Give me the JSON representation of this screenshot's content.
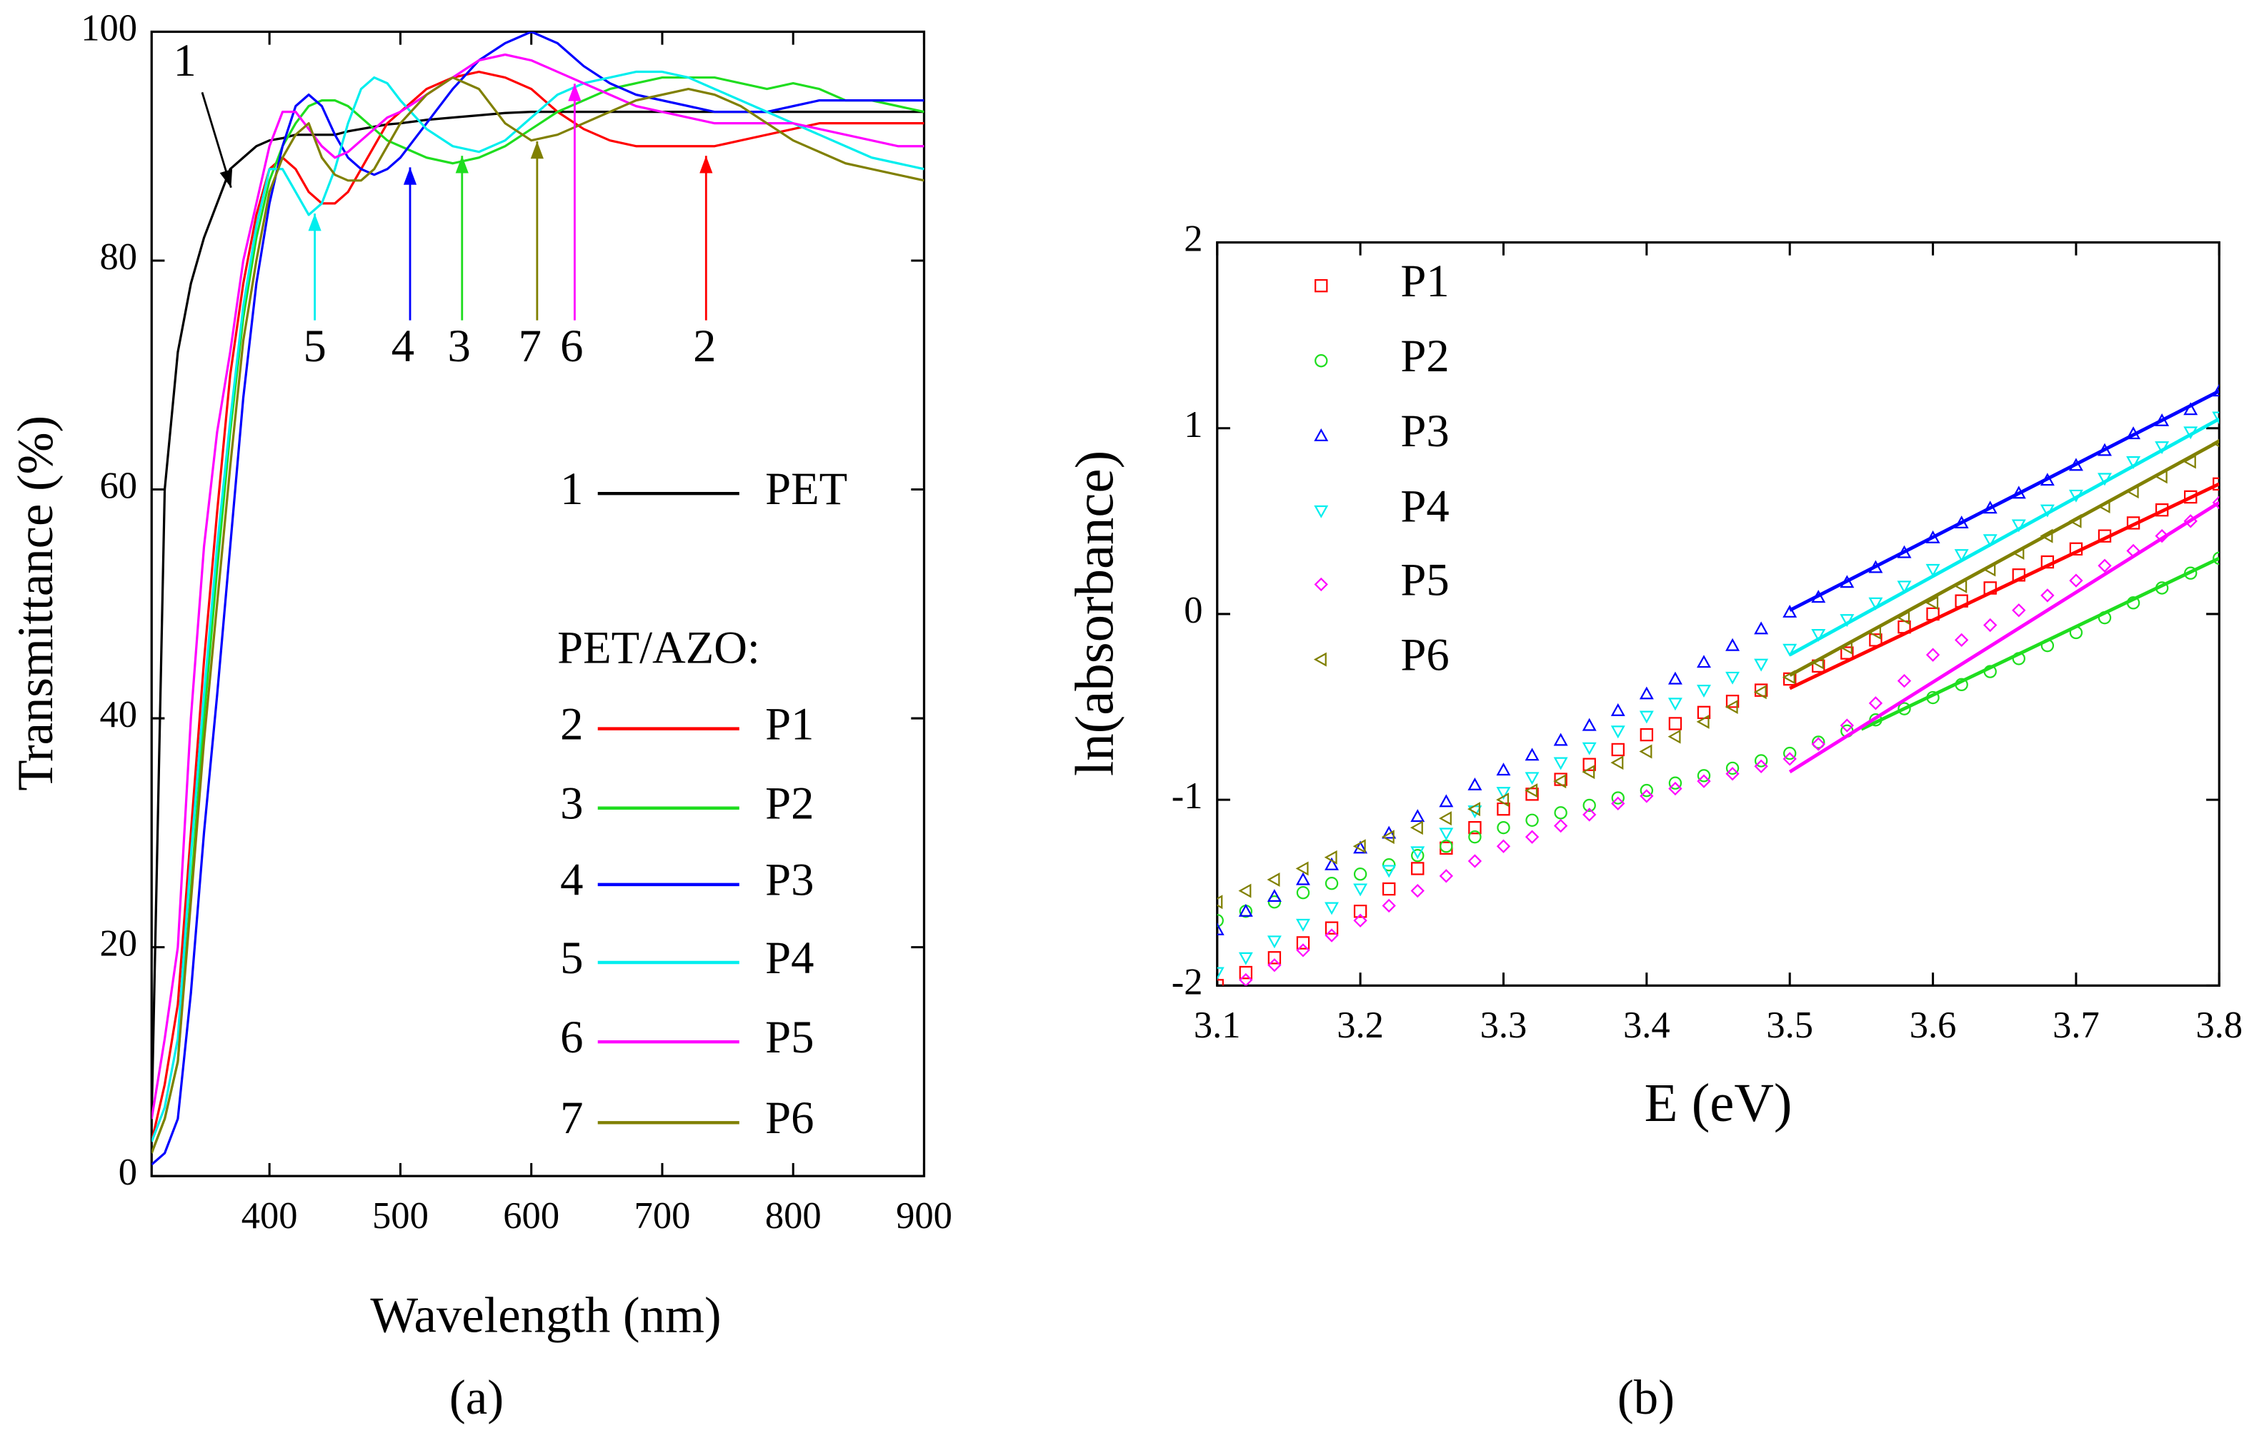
{
  "chart_data": [
    {
      "type": "line",
      "xlabel": "Wavelength (nm)",
      "ylabel": "Transmittance (%)",
      "caption": "(a)",
      "xlim": [
        310,
        900
      ],
      "ylim": [
        0,
        100
      ],
      "xticks": [
        400,
        500,
        600,
        700,
        800,
        900
      ],
      "yticks": [
        0,
        20,
        40,
        60,
        80,
        100
      ],
      "legend_title": "PET/AZO:",
      "x": [
        310,
        320,
        330,
        340,
        350,
        360,
        370,
        380,
        390,
        400,
        410,
        420,
        430,
        440,
        450,
        460,
        470,
        480,
        490,
        500,
        520,
        540,
        560,
        580,
        600,
        620,
        640,
        660,
        680,
        700,
        720,
        740,
        760,
        780,
        800,
        820,
        840,
        860,
        880,
        900
      ],
      "series": [
        {
          "name": "PET",
          "label": "1",
          "color": "#000000",
          "values": [
            5,
            60,
            72,
            78,
            82,
            85,
            88,
            89,
            90,
            90.5,
            90.7,
            91,
            91,
            91,
            91,
            91.3,
            91.5,
            91.7,
            91.9,
            92,
            92.3,
            92.5,
            92.7,
            92.9,
            93,
            93,
            93,
            93,
            93,
            93,
            93,
            93,
            93,
            93,
            93,
            93,
            93,
            93,
            93,
            93
          ]
        },
        {
          "name": "P1",
          "label": "2",
          "color": "#ff0000",
          "values": [
            3,
            8,
            15,
            30,
            45,
            58,
            70,
            78,
            84,
            88,
            89,
            88,
            86,
            85,
            85,
            86,
            88,
            90,
            92,
            93,
            95,
            96,
            96.5,
            96,
            95,
            93,
            91.5,
            90.5,
            90,
            90,
            90,
            90,
            90.5,
            91,
            91.5,
            92,
            92,
            92,
            92,
            92
          ]
        },
        {
          "name": "P2",
          "label": "3",
          "color": "#1fdd1f",
          "values": [
            2,
            5,
            10,
            25,
            40,
            53,
            65,
            75,
            82,
            87,
            90,
            92,
            93.5,
            94,
            94,
            93.5,
            92.5,
            91.5,
            90.5,
            90,
            89,
            88.5,
            89,
            90,
            91.5,
            93,
            94,
            95,
            95.5,
            96,
            96,
            96,
            95.5,
            95,
            95.5,
            95,
            94,
            94,
            93.5,
            93
          ]
        },
        {
          "name": "P3",
          "label": "4",
          "color": "#0000ff",
          "values": [
            1,
            2,
            5,
            16,
            30,
            42,
            55,
            68,
            78,
            85,
            90,
            93.5,
            94.5,
            93.5,
            91,
            89,
            88,
            87.5,
            88,
            89,
            92,
            95,
            97.5,
            99,
            100,
            99,
            97,
            95.5,
            94.5,
            94,
            93.5,
            93,
            93,
            93,
            93.5,
            94,
            94,
            94,
            94,
            94
          ]
        },
        {
          "name": "P4",
          "label": "5",
          "color": "#00eeee",
          "values": [
            3,
            6,
            12,
            28,
            42,
            55,
            66,
            76,
            83,
            88,
            88,
            86,
            84,
            85,
            88,
            92,
            95,
            96,
            95.5,
            94,
            91.5,
            90,
            89.5,
            90.5,
            92.5,
            94.5,
            95.5,
            96,
            96.5,
            96.5,
            96,
            95,
            94,
            93,
            92,
            91,
            90,
            89,
            88.5,
            88
          ]
        },
        {
          "name": "P5",
          "label": "6",
          "color": "#ff00ff",
          "values": [
            5,
            12,
            20,
            40,
            55,
            65,
            72,
            80,
            85,
            90,
            93,
            93,
            91.5,
            90,
            89,
            89.5,
            90.5,
            91.5,
            92.5,
            93,
            94.5,
            96,
            97.5,
            98,
            97.5,
            96.5,
            95.5,
            94.5,
            93.5,
            93,
            92.5,
            92,
            92,
            92,
            92,
            91.5,
            91,
            90.5,
            90,
            90
          ]
        },
        {
          "name": "P6",
          "label": "7",
          "color": "#808000",
          "values": [
            2,
            5,
            10,
            24,
            38,
            50,
            62,
            73,
            80,
            86,
            89,
            91,
            92,
            89,
            87.5,
            87,
            87,
            88,
            90,
            92,
            94.5,
            96,
            95,
            92,
            90.5,
            91,
            92,
            93,
            94,
            94.5,
            95,
            94.5,
            93.5,
            92,
            90.5,
            89.5,
            88.5,
            88,
            87.5,
            87
          ]
        }
      ]
    },
    {
      "type": "scatter",
      "xlabel": "E (eV)",
      "ylabel": "ln(absorbance)",
      "caption": "(b)",
      "xlim": [
        3.1,
        3.8
      ],
      "ylim": [
        -2,
        2
      ],
      "xticks": [
        3.1,
        3.2,
        3.3,
        3.4,
        3.5,
        3.6,
        3.7,
        3.8
      ],
      "yticks": [
        -2,
        -1,
        0,
        1,
        2
      ],
      "x": [
        3.1,
        3.12,
        3.14,
        3.16,
        3.18,
        3.2,
        3.22,
        3.24,
        3.26,
        3.28,
        3.3,
        3.32,
        3.34,
        3.36,
        3.38,
        3.4,
        3.42,
        3.44,
        3.46,
        3.48,
        3.5,
        3.52,
        3.54,
        3.56,
        3.58,
        3.6,
        3.62,
        3.64,
        3.66,
        3.68,
        3.7,
        3.72,
        3.74,
        3.76,
        3.78,
        3.8
      ],
      "series": [
        {
          "name": "P1",
          "color": "#ff0000",
          "marker": "square",
          "values": [
            -2.0,
            -1.93,
            -1.85,
            -1.77,
            -1.69,
            -1.6,
            -1.48,
            -1.37,
            -1.26,
            -1.15,
            -1.05,
            -0.97,
            -0.89,
            -0.81,
            -0.73,
            -0.65,
            -0.59,
            -0.53,
            -0.47,
            -0.41,
            -0.35,
            -0.28,
            -0.21,
            -0.14,
            -0.07,
            0.0,
            0.07,
            0.14,
            0.21,
            0.28,
            0.35,
            0.42,
            0.49,
            0.56,
            0.63,
            0.7
          ],
          "fit": {
            "x": [
              3.5,
              3.8
            ],
            "y": [
              -0.4,
              0.7
            ]
          }
        },
        {
          "name": "P2",
          "color": "#1fdd1f",
          "marker": "circle",
          "values": [
            -1.65,
            -1.6,
            -1.55,
            -1.5,
            -1.45,
            -1.4,
            -1.35,
            -1.3,
            -1.25,
            -1.2,
            -1.15,
            -1.11,
            -1.07,
            -1.03,
            -0.99,
            -0.95,
            -0.91,
            -0.87,
            -0.83,
            -0.79,
            -0.75,
            -0.69,
            -0.63,
            -0.57,
            -0.51,
            -0.45,
            -0.38,
            -0.31,
            -0.24,
            -0.17,
            -0.1,
            -0.02,
            0.06,
            0.14,
            0.22,
            0.3
          ],
          "fit": {
            "x": [
              3.55,
              3.8
            ],
            "y": [
              -0.62,
              0.3
            ]
          }
        },
        {
          "name": "P3",
          "color": "#0000ff",
          "marker": "triangle-up",
          "values": [
            -1.7,
            -1.6,
            -1.52,
            -1.43,
            -1.35,
            -1.26,
            -1.18,
            -1.09,
            -1.01,
            -0.92,
            -0.84,
            -0.76,
            -0.68,
            -0.6,
            -0.52,
            -0.43,
            -0.35,
            -0.26,
            -0.17,
            -0.08,
            0.01,
            0.09,
            0.17,
            0.25,
            0.33,
            0.41,
            0.49,
            0.57,
            0.65,
            0.72,
            0.8,
            0.88,
            0.97,
            1.04,
            1.1,
            1.2
          ],
          "fit": {
            "x": [
              3.5,
              3.8
            ],
            "y": [
              0.02,
              1.2
            ]
          }
        },
        {
          "name": "P4",
          "color": "#00eeee",
          "marker": "triangle-down",
          "values": [
            -1.93,
            -1.85,
            -1.76,
            -1.67,
            -1.58,
            -1.48,
            -1.38,
            -1.28,
            -1.18,
            -1.06,
            -0.96,
            -0.88,
            -0.8,
            -0.72,
            -0.63,
            -0.55,
            -0.48,
            -0.41,
            -0.34,
            -0.27,
            -0.19,
            -0.11,
            -0.03,
            0.06,
            0.15,
            0.24,
            0.32,
            0.4,
            0.48,
            0.56,
            0.64,
            0.73,
            0.82,
            0.9,
            0.98,
            1.06
          ],
          "fit": {
            "x": [
              3.5,
              3.8
            ],
            "y": [
              -0.22,
              1.05
            ]
          }
        },
        {
          "name": "P5",
          "color": "#ff00ff",
          "marker": "diamond",
          "values": [
            -2.05,
            -1.97,
            -1.89,
            -1.81,
            -1.73,
            -1.65,
            -1.57,
            -1.49,
            -1.41,
            -1.33,
            -1.25,
            -1.2,
            -1.14,
            -1.08,
            -1.02,
            -0.98,
            -0.94,
            -0.9,
            -0.86,
            -0.82,
            -0.78,
            -0.7,
            -0.6,
            -0.48,
            -0.36,
            -0.22,
            -0.14,
            -0.06,
            0.02,
            0.1,
            0.18,
            0.26,
            0.34,
            0.42,
            0.5,
            0.6
          ],
          "fit": {
            "x": [
              3.5,
              3.8
            ],
            "y": [
              -0.85,
              0.6
            ]
          }
        },
        {
          "name": "P6",
          "color": "#808000",
          "marker": "triangle-left",
          "values": [
            -1.55,
            -1.49,
            -1.43,
            -1.37,
            -1.31,
            -1.25,
            -1.2,
            -1.15,
            -1.1,
            -1.05,
            -1.0,
            -0.95,
            -0.9,
            -0.85,
            -0.8,
            -0.74,
            -0.66,
            -0.58,
            -0.5,
            -0.42,
            -0.34,
            -0.26,
            -0.18,
            -0.1,
            -0.02,
            0.06,
            0.15,
            0.24,
            0.33,
            0.42,
            0.5,
            0.58,
            0.66,
            0.74,
            0.82,
            0.92
          ],
          "fit": {
            "x": [
              3.5,
              3.8
            ],
            "y": [
              -0.33,
              0.93
            ]
          }
        }
      ]
    }
  ]
}
